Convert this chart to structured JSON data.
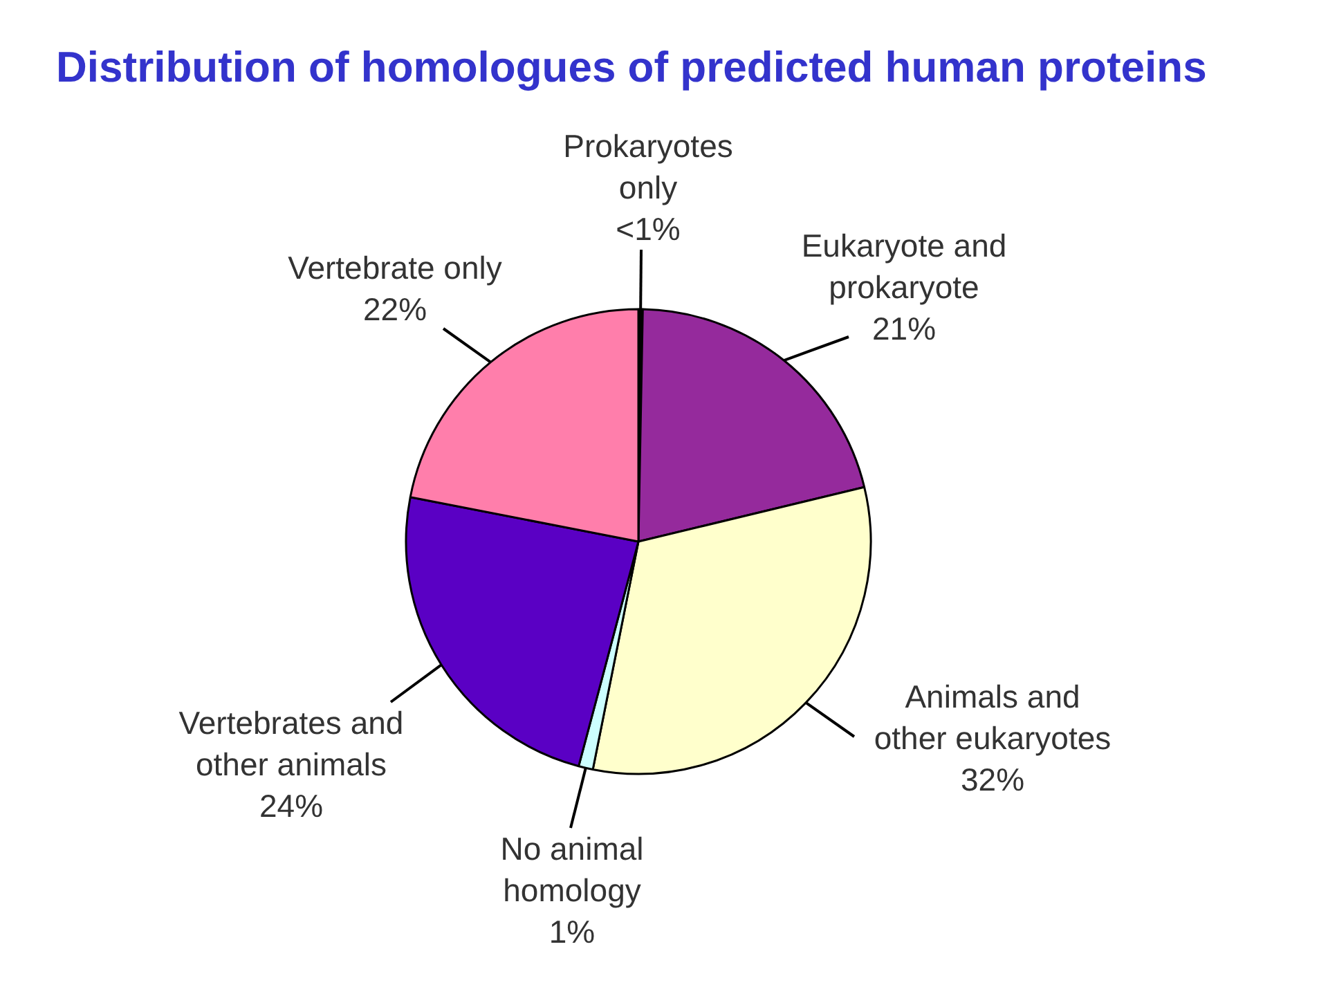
{
  "chart_data": {
    "type": "pie",
    "title": "Distribution of homologues of predicted human proteins",
    "categories": [
      "Prokaryotes only",
      "Eukaryote and prokaryote",
      "Animals and other eukaryotes",
      "No animal homology",
      "Vertebrates and other animals",
      "Vertebrate only"
    ],
    "values": [
      0.3,
      21,
      32,
      1,
      24,
      22
    ],
    "value_labels": [
      "<1%",
      "21%",
      "32%",
      "1%",
      "24%",
      "22%"
    ],
    "colors": [
      "#000000",
      "#952a9c",
      "#ffffcc",
      "#ccffff",
      "#5a00c4",
      "#ff7eab"
    ]
  }
}
